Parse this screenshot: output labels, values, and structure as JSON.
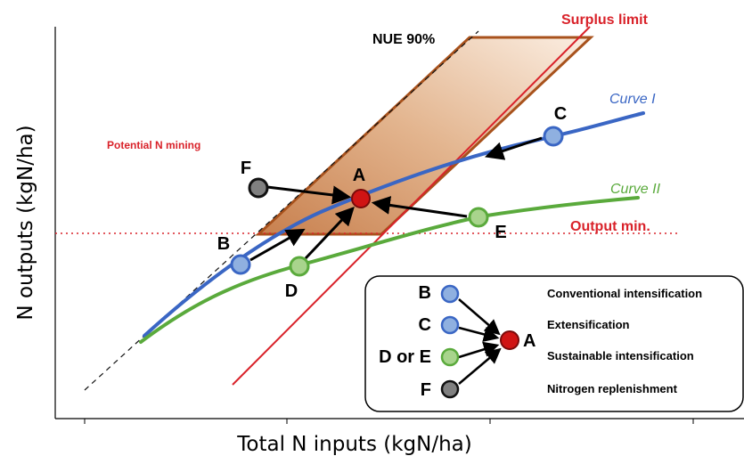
{
  "axes": {
    "x_title": "Total N inputs (kgN/ha)",
    "y_title": "N outputs (kgN/ha)"
  },
  "labels": {
    "nue": "NUE 90%",
    "surplus": "Surplus limit",
    "mining": "Potential N mining",
    "output_min": "Output min.",
    "curve1": "Curve I",
    "curve2": "Curve II"
  },
  "points": {
    "A": "A",
    "B": "B",
    "C": "C",
    "D": "D",
    "E": "E",
    "F": "F"
  },
  "legend": {
    "rows": [
      {
        "key": "B",
        "text": "Conventional intensification"
      },
      {
        "key": "C",
        "text": "Extensification"
      },
      {
        "key": "D or E",
        "text": "Sustainable intensification"
      },
      {
        "key": "F",
        "text": "Nitrogen replenishment"
      }
    ],
    "target": "A"
  },
  "colors": {
    "blue_curve": "#3a66c4",
    "green_curve": "#5aaa3c",
    "red_line": "#d9222a",
    "zone_stroke": "#a8521c",
    "point_A": "#d01414",
    "point_blue": "#8fb0e0",
    "point_green": "#a8d48c",
    "point_gray": "#808080"
  }
}
